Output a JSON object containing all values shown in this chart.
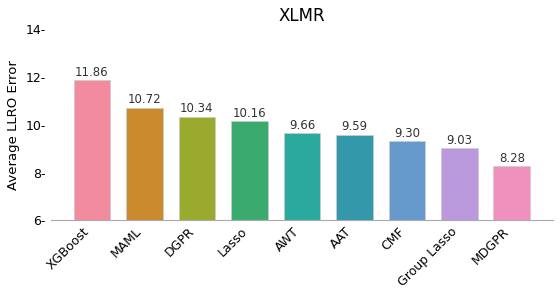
{
  "title": "XLMR",
  "ylabel": "Average LLRO Error",
  "categories": [
    "XGBoost",
    "MAML",
    "DGPR",
    "Lasso",
    "AWT",
    "AAT",
    "CMF",
    "Group Lasso",
    "MDGPR"
  ],
  "values": [
    11.86,
    10.72,
    10.34,
    10.16,
    9.66,
    9.59,
    9.3,
    9.03,
    8.28
  ],
  "bar_colors": [
    "#f28b9e",
    "#cc8a2e",
    "#9aaa2e",
    "#3aaa6e",
    "#2aaa9e",
    "#3399aa",
    "#6699cc",
    "#bb99dd",
    "#f090bc"
  ],
  "ylim": [
    6,
    14
  ],
  "yticks": [
    6,
    8,
    10,
    12,
    14
  ],
  "ytick_labels": [
    "6-",
    "8-",
    "10-",
    "12-",
    "14-"
  ],
  "bar_edgecolor": "#cccccc",
  "label_fontsize": 8.5,
  "title_fontsize": 12,
  "ylabel_fontsize": 9.5,
  "tick_fontsize": 9,
  "bar_bottom": 6
}
